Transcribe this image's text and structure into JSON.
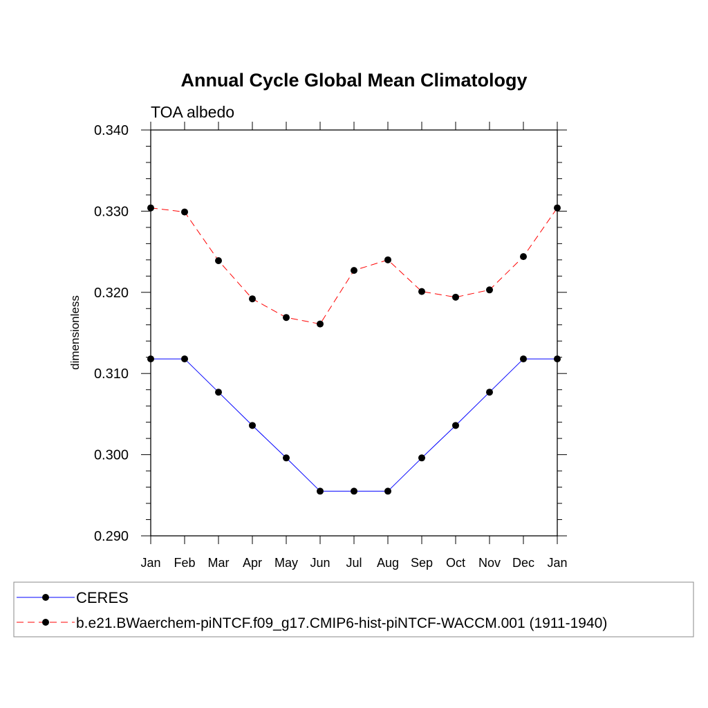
{
  "chart_data": {
    "type": "line",
    "title": "Annual Cycle Global Mean Climatology",
    "subtitle": "TOA albedo",
    "xlabel": "",
    "ylabel": "dimensionless",
    "categories": [
      "Jan",
      "Feb",
      "Mar",
      "Apr",
      "May",
      "Jun",
      "Jul",
      "Aug",
      "Sep",
      "Oct",
      "Nov",
      "Dec",
      "Jan"
    ],
    "ylim": [
      0.29,
      0.34
    ],
    "yticks": [
      "0.290",
      "0.300",
      "0.310",
      "0.320",
      "0.330",
      "0.340"
    ],
    "grid": false,
    "legend_position": "bottom",
    "series": [
      {
        "name": "CERES",
        "color": "#0000ff",
        "line_style": "solid",
        "marker": "filled-circle",
        "values": [
          0.3118,
          0.3118,
          0.3077,
          0.3036,
          0.2996,
          0.2955,
          0.2955,
          0.2955,
          0.2996,
          0.3036,
          0.3077,
          0.3118,
          0.3118
        ]
      },
      {
        "name": "b.e21.BWaerchem-piNTCF.f09_g17.CMIP6-hist-piNTCF-WACCM.001 (1911-1940)",
        "color": "#ff0000",
        "line_style": "dashed",
        "marker": "filled-circle",
        "values": [
          0.3304,
          0.3299,
          0.3239,
          0.3192,
          0.3169,
          0.3161,
          0.3227,
          0.324,
          0.3201,
          0.3194,
          0.3203,
          0.3244,
          0.3304
        ]
      }
    ]
  }
}
